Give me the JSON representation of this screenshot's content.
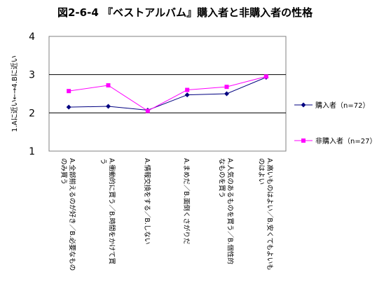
{
  "chart_data": {
    "type": "line",
    "title": "図2-6-4 『ベストアルバム』購入者と非購入者の性格",
    "ylabel": "1.Aに近い←→4.Bに近い",
    "xlabel": "",
    "ylim": [
      1,
      4
    ],
    "yticks": [
      "1",
      "2",
      "3",
      "4"
    ],
    "grid": "horizontal lines at 2 and 3",
    "legend_position": "right",
    "categories": [
      [
        "A.全部揃えるのが好き／B.必要なもの",
        "のみ買う"
      ],
      [
        "A.衝動的に買う／B.時間をかけて買",
        "う"
      ],
      [
        "A.情報交換をする／B.しない"
      ],
      [
        "A.まめだ／B.面倒くさがりだ"
      ],
      [
        "A.人気のあるものを買う／B.個性的",
        "なものを買う"
      ],
      [
        "A.高いものはよい／B.安くてもよいも",
        "のはよい"
      ]
    ],
    "series": [
      {
        "name": "購入者（n=72）",
        "color": "#000080",
        "marker": "diamond",
        "values": [
          2.15,
          2.17,
          2.07,
          2.47,
          2.5,
          2.93
        ]
      },
      {
        "name": "非購入者（n=27）",
        "color": "#ff00ff",
        "marker": "square",
        "values": [
          2.57,
          2.72,
          2.05,
          2.6,
          2.68,
          2.95
        ]
      }
    ]
  }
}
